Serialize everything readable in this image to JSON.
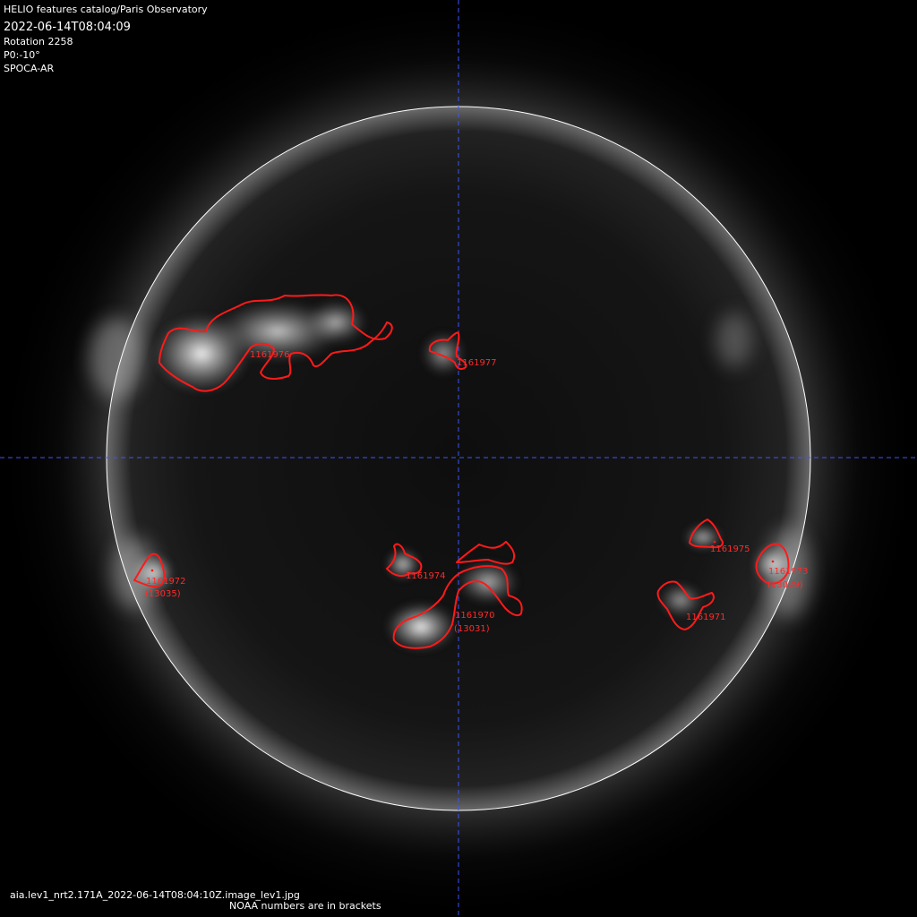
{
  "header": {
    "catalog": "HELIO features catalog/Paris Observatory",
    "datetime": "2022-06-14T08:04:09",
    "rotation": "Rotation 2258",
    "p0": "P0:-10°",
    "method": "SPOCA-AR"
  },
  "footer": {
    "filename": "aia.lev1_nrt2.171A_2022-06-14T08:04:10Z.image_lev1.jpg",
    "note": "NOAA numbers are in brackets"
  },
  "regions": [
    {
      "id": "1161976",
      "noaa": ""
    },
    {
      "id": "1161977",
      "noaa": ""
    },
    {
      "id": "1161972",
      "noaa": "(13035)"
    },
    {
      "id": "1161974",
      "noaa": ""
    },
    {
      "id": "1161970",
      "noaa": "(13031)"
    },
    {
      "id": "1161975",
      "noaa": ""
    },
    {
      "id": "1161973",
      "noaa": "(13029)"
    },
    {
      "id": "1161971",
      "noaa": ""
    }
  ],
  "colors": {
    "contour": "#ff1a1a",
    "label": "#ff2a2a",
    "limb": "#ffffff",
    "crosshair": "#3b55ff"
  }
}
